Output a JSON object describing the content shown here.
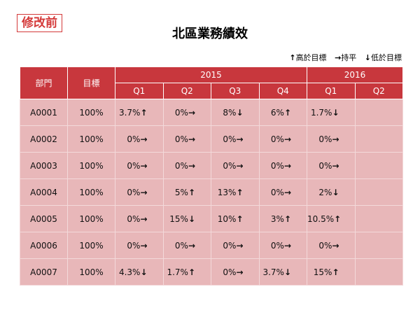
{
  "badge": "修改前",
  "title": "北區業務績效",
  "legend": [
    {
      "icon": "arrow-up",
      "symbol": "↑",
      "label": "高於目標"
    },
    {
      "icon": "arrow-right",
      "symbol": "→",
      "label": "持平"
    },
    {
      "icon": "arrow-down",
      "symbol": "↓",
      "label": "低於目標"
    }
  ],
  "colors": {
    "header": "#c8373d",
    "cell": "#e8b7b9",
    "badge": "#d43a3a"
  },
  "table": {
    "col_dept": "部門",
    "col_target": "目標",
    "year1": "2015",
    "year2": "2016",
    "quarters": [
      "Q1",
      "Q2",
      "Q3",
      "Q4",
      "Q1",
      "Q2"
    ],
    "rows": [
      {
        "dept": "A0001",
        "target": "100%",
        "cells": [
          {
            "v": "3.7%",
            "a": "↑"
          },
          {
            "v": "0%",
            "a": "→"
          },
          {
            "v": "8%",
            "a": "↓"
          },
          {
            "v": "6%",
            "a": "↑"
          },
          {
            "v": "1.7%",
            "a": "↓"
          },
          {
            "v": "",
            "a": ""
          }
        ]
      },
      {
        "dept": "A0002",
        "target": "100%",
        "cells": [
          {
            "v": "0%",
            "a": "→"
          },
          {
            "v": "0%",
            "a": "→"
          },
          {
            "v": "0%",
            "a": "→"
          },
          {
            "v": "0%",
            "a": "→"
          },
          {
            "v": "0%",
            "a": "→"
          },
          {
            "v": "",
            "a": ""
          }
        ]
      },
      {
        "dept": "A0003",
        "target": "100%",
        "cells": [
          {
            "v": "0%",
            "a": "→"
          },
          {
            "v": "0%",
            "a": "→"
          },
          {
            "v": "0%",
            "a": "→"
          },
          {
            "v": "0%",
            "a": "→"
          },
          {
            "v": "0%",
            "a": "→"
          },
          {
            "v": "",
            "a": ""
          }
        ]
      },
      {
        "dept": "A0004",
        "target": "100%",
        "cells": [
          {
            "v": "0%",
            "a": "→"
          },
          {
            "v": "5%",
            "a": "↑"
          },
          {
            "v": "13%",
            "a": "↑"
          },
          {
            "v": "0%",
            "a": "→"
          },
          {
            "v": "2%",
            "a": "↓"
          },
          {
            "v": "",
            "a": ""
          }
        ]
      },
      {
        "dept": "A0005",
        "target": "100%",
        "cells": [
          {
            "v": "0%",
            "a": "→"
          },
          {
            "v": "15%",
            "a": "↓"
          },
          {
            "v": "10%",
            "a": "↑"
          },
          {
            "v": "3%",
            "a": "↑"
          },
          {
            "v": "10.5%",
            "a": "↑"
          },
          {
            "v": "",
            "a": ""
          }
        ]
      },
      {
        "dept": "A0006",
        "target": "100%",
        "cells": [
          {
            "v": "0%",
            "a": "→"
          },
          {
            "v": "0%",
            "a": "→"
          },
          {
            "v": "0%",
            "a": "→"
          },
          {
            "v": "0%",
            "a": "→"
          },
          {
            "v": "0%",
            "a": "→"
          },
          {
            "v": "",
            "a": ""
          }
        ]
      },
      {
        "dept": "A0007",
        "target": "100%",
        "cells": [
          {
            "v": "4.3%",
            "a": "↓"
          },
          {
            "v": "1.7%",
            "a": "↑"
          },
          {
            "v": "0%",
            "a": "→"
          },
          {
            "v": "3.7%",
            "a": "↓"
          },
          {
            "v": "15%",
            "a": "↑"
          },
          {
            "v": "",
            "a": ""
          }
        ]
      }
    ]
  }
}
